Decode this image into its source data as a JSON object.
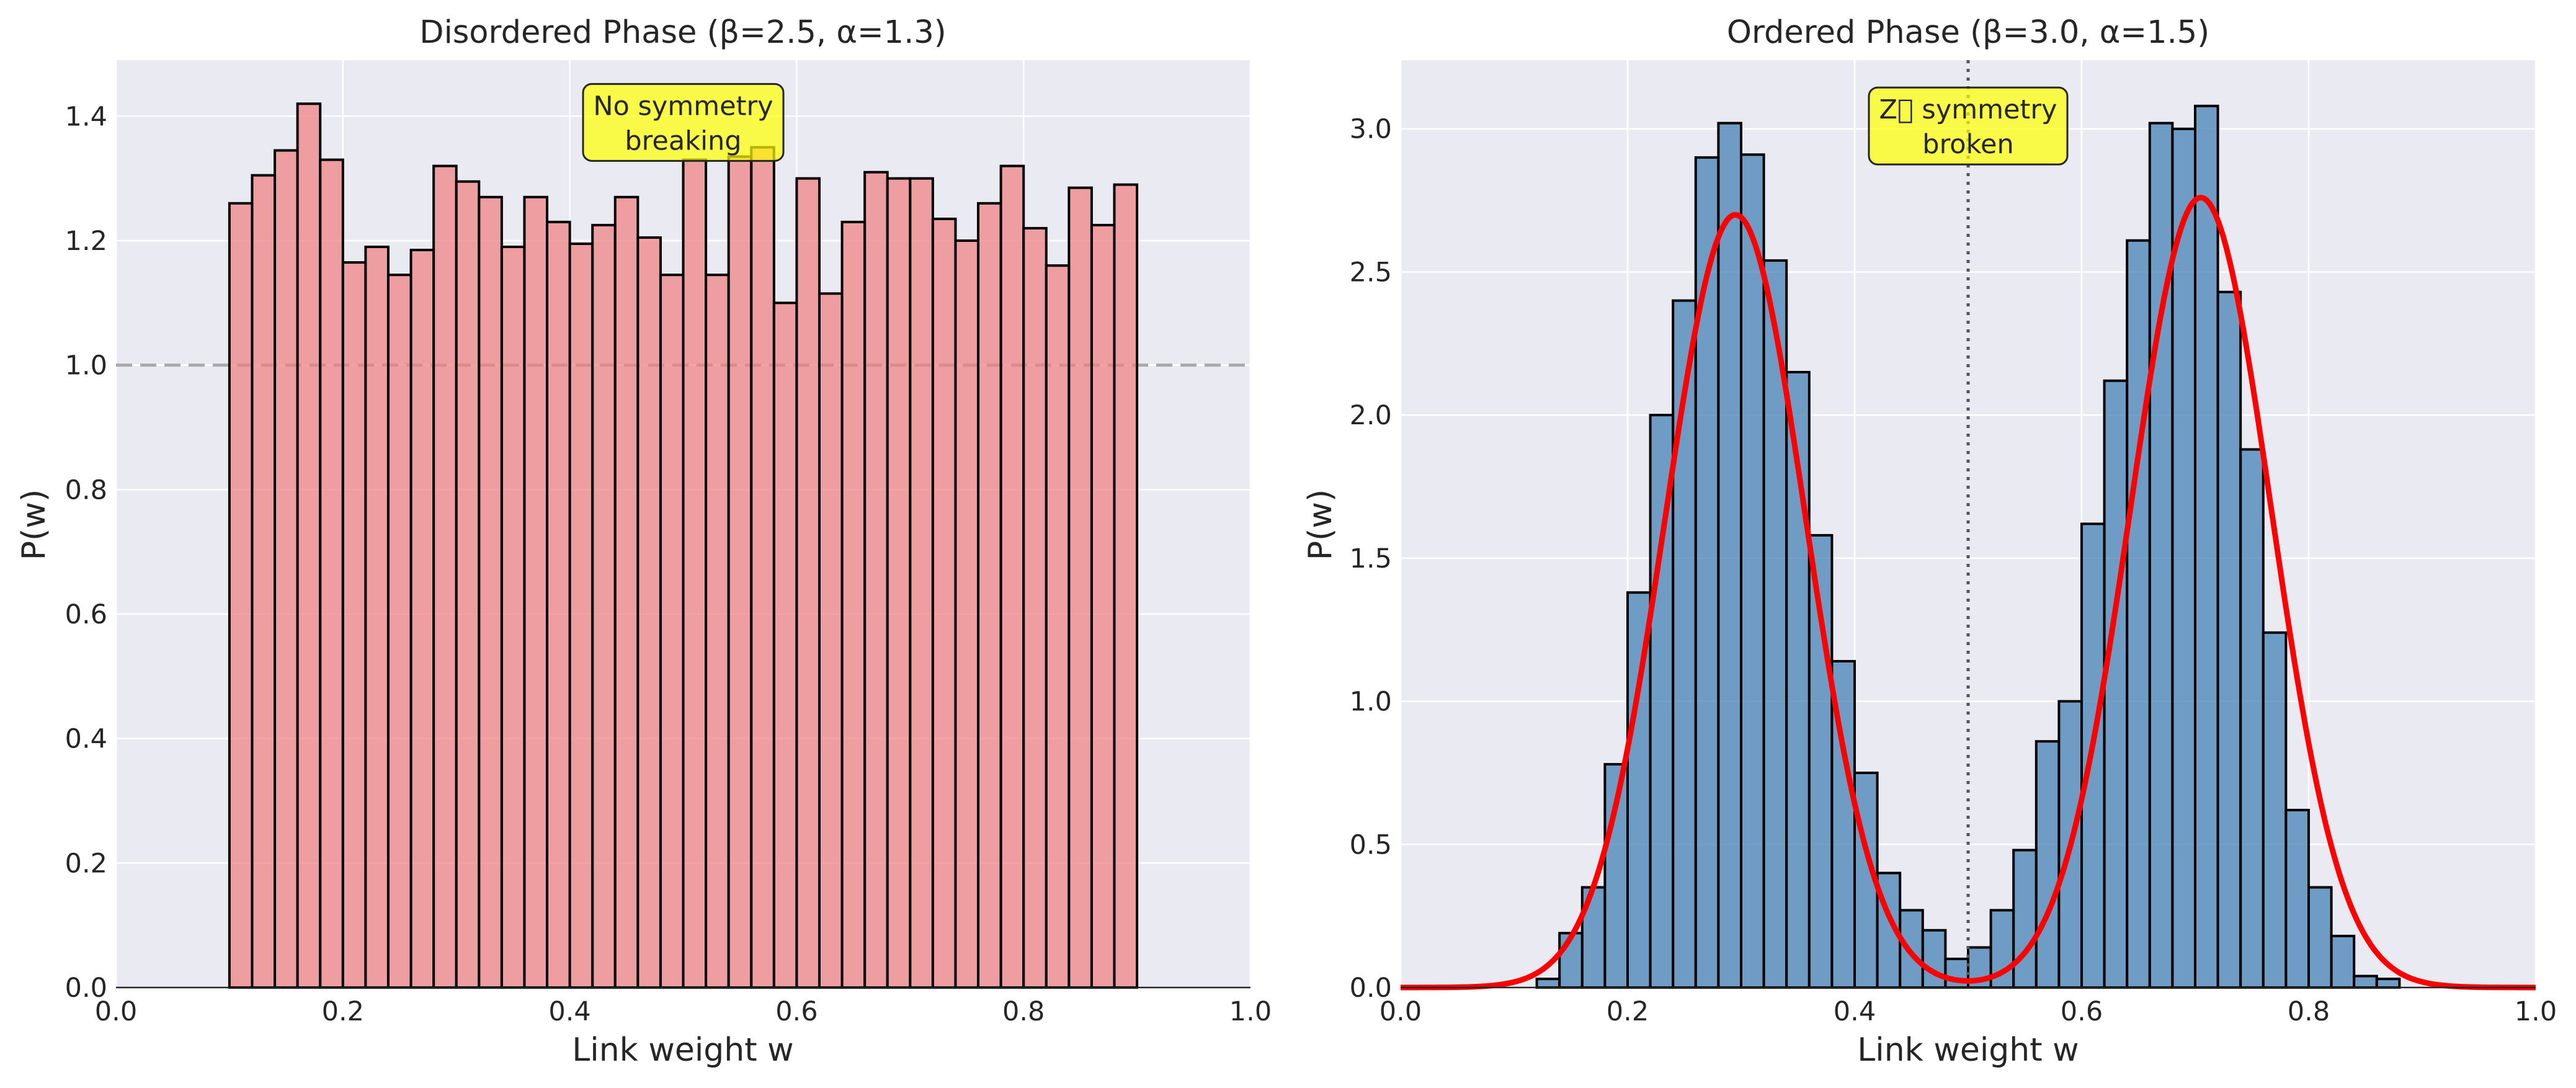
{
  "colors": {
    "axes_face": "#EAEAF2",
    "grid": "#FFFFFF",
    "left_bar_fill": "#F08080",
    "right_bar_fill": "#4682B4",
    "bar_edge": "#000000",
    "fit_curve": "#FF0000",
    "annotation_fill": "#FFFF00",
    "reference_line": "#AAAAAA",
    "midline": "#555555"
  },
  "chart_data": [
    {
      "type": "bar",
      "title": "Disordered Phase (β=2.5, α=1.3)",
      "xlabel": "Link weight w",
      "ylabel": "P(w)",
      "xlim": [
        0.0,
        1.0
      ],
      "ylim": [
        0.0,
        1.49
      ],
      "xticks": [
        "0.0",
        "0.2",
        "0.4",
        "0.6",
        "0.8",
        "1.0"
      ],
      "yticks": [
        "0.0",
        "0.2",
        "0.4",
        "0.6",
        "0.8",
        "1.0",
        "1.2",
        "1.4"
      ],
      "grid": true,
      "bin_start": 0.1,
      "bin_width": 0.02,
      "values": [
        1.26,
        1.305,
        1.345,
        1.42,
        1.33,
        1.165,
        1.19,
        1.145,
        1.185,
        1.32,
        1.295,
        1.27,
        1.19,
        1.27,
        1.23,
        1.195,
        1.225,
        1.27,
        1.205,
        1.145,
        1.33,
        1.145,
        1.335,
        1.35,
        1.1,
        1.3,
        1.115,
        1.23,
        1.31,
        1.3,
        1.3,
        1.235,
        1.2,
        1.26,
        1.32,
        1.22,
        1.16,
        1.285,
        1.225,
        1.29
      ],
      "reference_line": {
        "y": 1.0,
        "style": "dashed"
      },
      "annotation": {
        "text_lines": [
          "No symmetry",
          "breaking"
        ],
        "x": 0.5,
        "y": 1.39
      }
    },
    {
      "type": "bar",
      "title": "Ordered Phase (β=3.0, α=1.5)",
      "xlabel": "Link weight w",
      "ylabel": "P(w)",
      "xlim": [
        0.0,
        1.0
      ],
      "ylim": [
        0.0,
        3.24
      ],
      "xticks": [
        "0.0",
        "0.2",
        "0.4",
        "0.6",
        "0.8",
        "1.0"
      ],
      "yticks": [
        "0.0",
        "0.5",
        "1.0",
        "1.5",
        "2.0",
        "2.5",
        "3.0"
      ],
      "grid": true,
      "bin_start": 0.08,
      "bin_width": 0.02,
      "values": [
        0.0,
        0.0,
        0.03,
        0.19,
        0.35,
        0.78,
        1.38,
        2.0,
        2.4,
        2.9,
        3.02,
        2.91,
        2.54,
        2.15,
        1.58,
        1.14,
        0.75,
        0.4,
        0.27,
        0.2,
        0.1,
        0.14,
        0.27,
        0.48,
        0.86,
        1.0,
        1.62,
        2.12,
        2.61,
        3.02,
        3.0,
        3.08,
        2.43,
        1.88,
        1.24,
        0.62,
        0.35,
        0.18,
        0.04,
        0.03
      ],
      "fit": {
        "type": "gaussian_mixture",
        "components": [
          {
            "center": 0.295,
            "amplitude": 2.7,
            "sigma": 0.062
          },
          {
            "center": 0.705,
            "amplitude": 2.76,
            "sigma": 0.062
          }
        ]
      },
      "midline": {
        "x": 0.5,
        "style": "dotted"
      },
      "annotation": {
        "text_lines": [
          "Z⃞ symmetry",
          "broken"
        ],
        "x": 0.5,
        "y": 3.01
      }
    }
  ]
}
